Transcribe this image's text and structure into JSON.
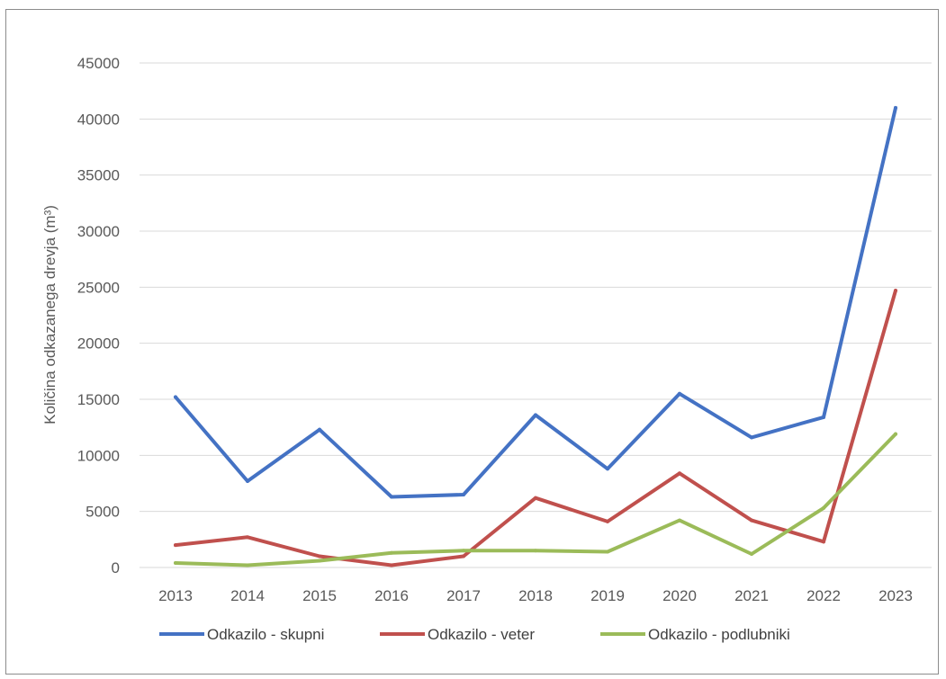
{
  "chart_data": {
    "type": "line",
    "title": "",
    "xlabel": "",
    "ylabel": "Količina odkazanega drevja (m³)",
    "ylim": [
      0,
      45000
    ],
    "yticks": [
      0,
      5000,
      10000,
      15000,
      20000,
      25000,
      30000,
      35000,
      40000,
      45000
    ],
    "grid": true,
    "legend_position": "bottom",
    "x": [
      "2013",
      "2014",
      "2015",
      "2016",
      "2017",
      "2018",
      "2019",
      "2020",
      "2021",
      "2022",
      "2023"
    ],
    "series": [
      {
        "name": "Odkazilo - skupni",
        "color": "#4472c4",
        "values": [
          15200,
          7700,
          12300,
          6300,
          6500,
          13600,
          8800,
          15500,
          11600,
          13400,
          41000
        ]
      },
      {
        "name": "Odkazilo - veter",
        "color": "#c0504d",
        "values": [
          2000,
          2700,
          1000,
          200,
          1000,
          6200,
          4100,
          8400,
          4200,
          2300,
          24700
        ]
      },
      {
        "name": "Odkazilo - podlubniki",
        "color": "#9bbb59",
        "values": [
          400,
          200,
          600,
          1300,
          1500,
          1500,
          1400,
          4200,
          1200,
          5300,
          11900
        ]
      }
    ]
  }
}
